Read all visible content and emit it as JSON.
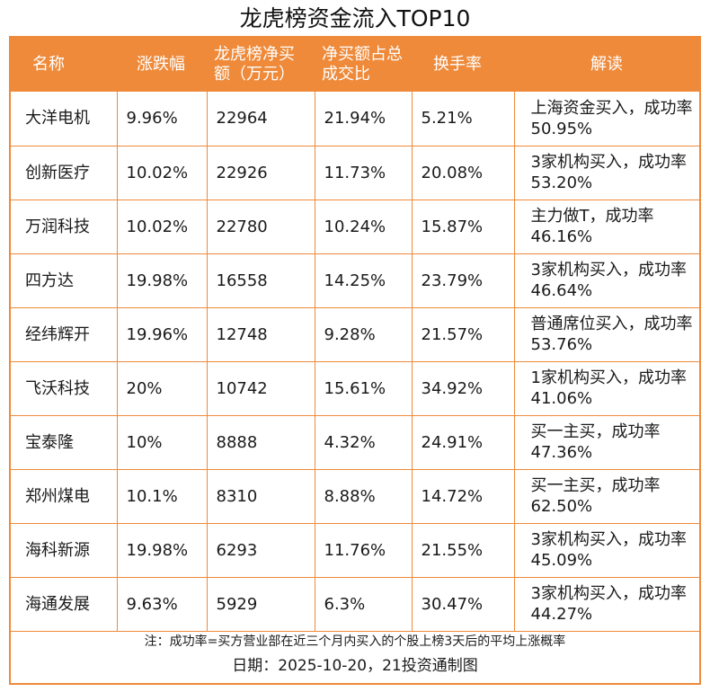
{
  "title": "龙虎榜资金流入TOP10",
  "columns": {
    "name": "名称",
    "change": "涨跌幅",
    "net_buy": "龙虎榜净买额（万元）",
    "net_ratio": "净买额占总成交比",
    "turnover": "换手率",
    "reading": "解读"
  },
  "rows": [
    {
      "name": "大洋电机",
      "change": "9.96%",
      "net_buy": "22964",
      "net_ratio": "21.94%",
      "turnover": "5.21%",
      "reading": "上海资金买入，成功率50.95%"
    },
    {
      "name": "创新医疗",
      "change": "10.02%",
      "net_buy": "22926",
      "net_ratio": "11.73%",
      "turnover": "20.08%",
      "reading": "3家机构买入，成功率53.20%"
    },
    {
      "name": "万润科技",
      "change": "10.02%",
      "net_buy": "22780",
      "net_ratio": "10.24%",
      "turnover": "15.87%",
      "reading": "主力做T，成功率46.16%"
    },
    {
      "name": "四方达",
      "change": "19.98%",
      "net_buy": "16558",
      "net_ratio": "14.25%",
      "turnover": "23.79%",
      "reading": "3家机构买入，成功率46.64%"
    },
    {
      "name": "经纬辉开",
      "change": "19.96%",
      "net_buy": "12748",
      "net_ratio": "9.28%",
      "turnover": "21.57%",
      "reading": "普通席位买入，成功率53.76%"
    },
    {
      "name": "飞沃科技",
      "change": "20%",
      "net_buy": "10742",
      "net_ratio": "15.61%",
      "turnover": "34.92%",
      "reading": "1家机构买入，成功率41.06%"
    },
    {
      "name": "宝泰隆",
      "change": "10%",
      "net_buy": "8888",
      "net_ratio": "4.32%",
      "turnover": "24.91%",
      "reading": "买一主买，成功率47.36%"
    },
    {
      "name": "郑州煤电",
      "change": "10.1%",
      "net_buy": "8310",
      "net_ratio": "8.88%",
      "turnover": "14.72%",
      "reading": "买一主买，成功率62.50%"
    },
    {
      "name": "海科新源",
      "change": "19.98%",
      "net_buy": "6293",
      "net_ratio": "11.76%",
      "turnover": "21.55%",
      "reading": "3家机构买入，成功率45.09%"
    },
    {
      "name": "海通发展",
      "change": "9.63%",
      "net_buy": "5929",
      "net_ratio": "6.3%",
      "turnover": "30.47%",
      "reading": "3家机构买入，成功率44.27%"
    }
  ],
  "footer": {
    "note": "注：成功率=买方营业部在近三个月内买入的个股上榜3天后的平均上涨概率",
    "date": "日期：2025-10-20，21投资通制图"
  },
  "colors": {
    "accent": "#ee8a3a",
    "header_text": "#ffffff",
    "body_text": "#1a1a1a"
  }
}
